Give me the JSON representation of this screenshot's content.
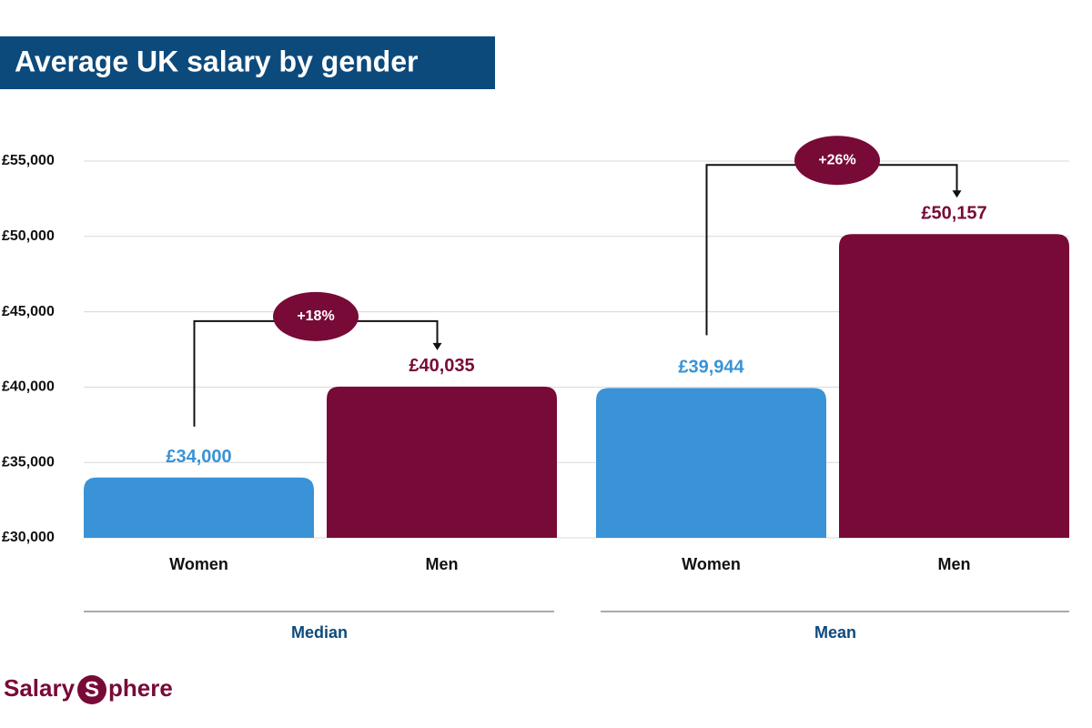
{
  "chart_data": {
    "type": "bar",
    "title": "Average UK salary by gender",
    "categories": [
      "Median",
      "Mean"
    ],
    "series": [
      {
        "name": "Women",
        "color": "#3a93d6",
        "values": [
          34000,
          39944
        ],
        "value_labels": [
          "£34,000",
          "£39,944"
        ]
      },
      {
        "name": "Men",
        "color": "#780a37",
        "values": [
          40035,
          50157
        ],
        "value_labels": [
          "£40,035",
          "£50,157"
        ]
      }
    ],
    "annotations": [
      "+18%",
      "+26%"
    ],
    "ylim": [
      30000,
      55000
    ],
    "yticks": [
      {
        "value": 30000,
        "label": "£30,000"
      },
      {
        "value": 35000,
        "label": "£35,000"
      },
      {
        "value": 40000,
        "label": "£40,000"
      },
      {
        "value": 45000,
        "label": "£45,000"
      },
      {
        "value": 50000,
        "label": "£50,000"
      },
      {
        "value": 55000,
        "label": "£55,000"
      }
    ],
    "grid": true
  },
  "brand": [
    "Salary",
    "S",
    "phere"
  ]
}
